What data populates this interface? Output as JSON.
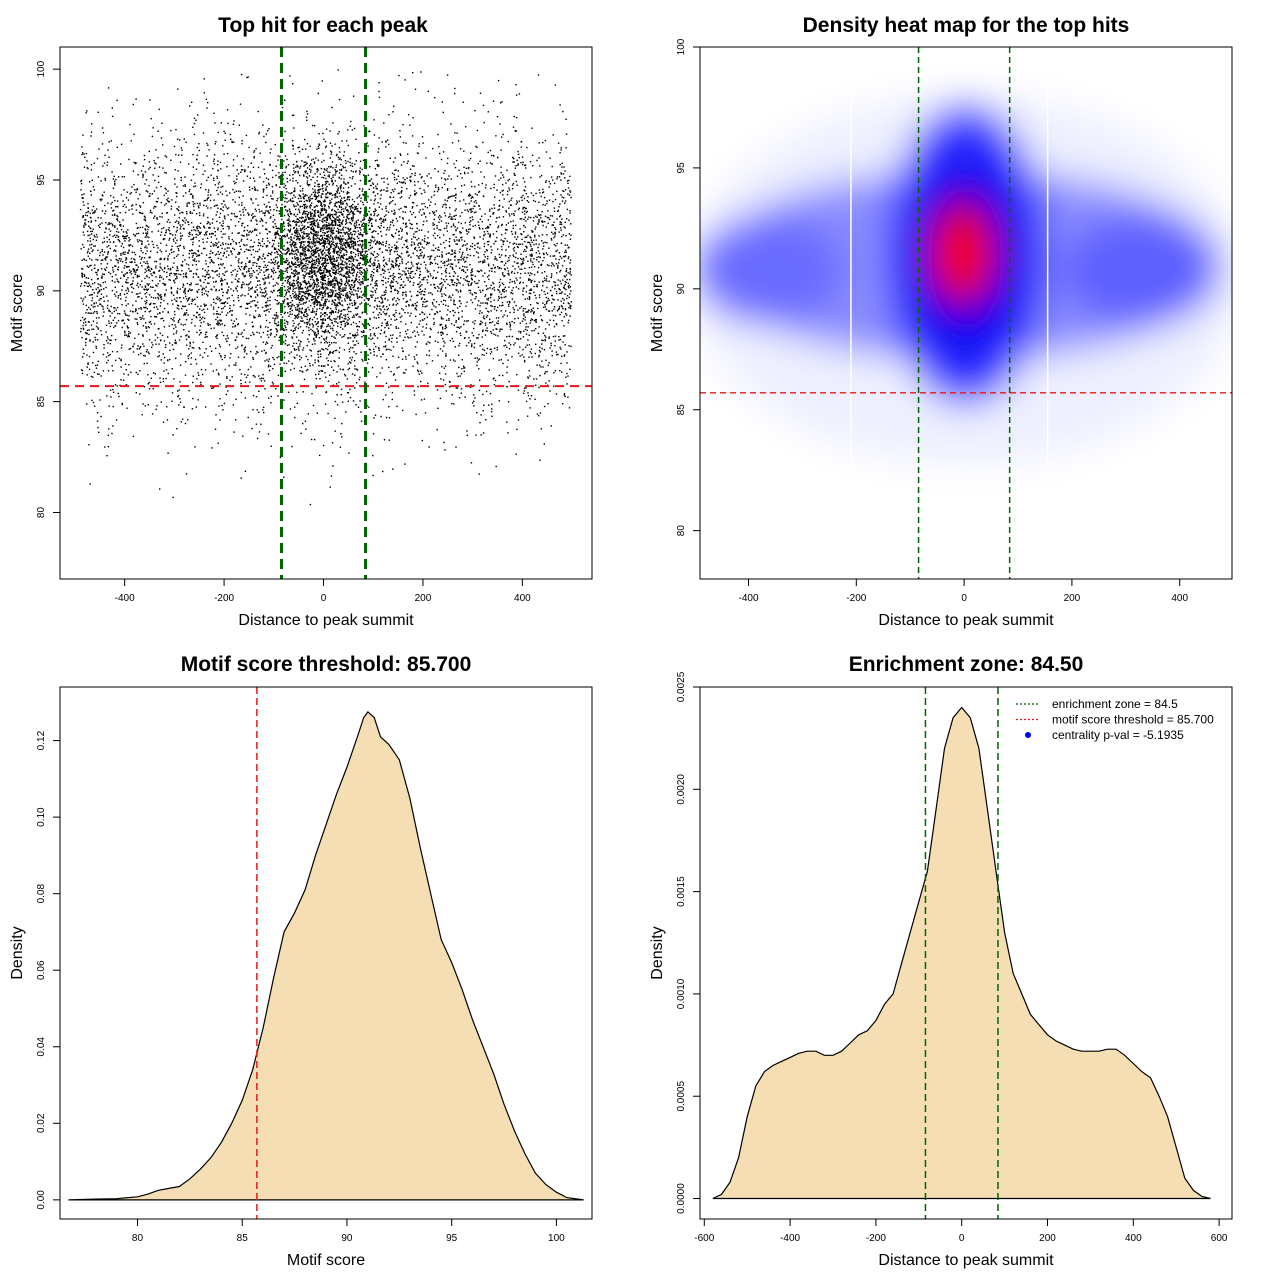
{
  "colors": {
    "threshold": "#e41a1c",
    "zone": "#006400",
    "density_fill": "#f5deb3",
    "points": "#000000",
    "heat_low": "#ffffff",
    "heat_mid": "#0000ff",
    "heat_high": "#ff0000",
    "centrality_marker": "#0000ff"
  },
  "chart_data": [
    {
      "id": "scatter",
      "type": "scatter",
      "title": "Top hit for each peak",
      "xlabel": "Distance to peak summit",
      "ylabel": "Motif score",
      "xlim": [
        -530,
        540
      ],
      "ylim": [
        77,
        101
      ],
      "xticks": [
        -400,
        -200,
        0,
        200,
        400
      ],
      "yticks": [
        80,
        85,
        90,
        95,
        100
      ],
      "threshold_y": 85.7,
      "zone_x": [
        -84.5,
        84.5
      ],
      "grid": false,
      "point_count_approx": 9000,
      "points_x_range": [
        -490,
        497
      ],
      "points_score_mean": 91,
      "points_score_sd": 3
    },
    {
      "id": "heatmap",
      "type": "heatmap",
      "title": "Density heat map for the top hits",
      "xlabel": "Distance to peak summit",
      "ylabel": "Motif score",
      "xlim": [
        -490,
        497
      ],
      "ylim": [
        78,
        100
      ],
      "xticks": [
        -400,
        -200,
        0,
        200,
        400
      ],
      "yticks": [
        80,
        85,
        90,
        95,
        100
      ],
      "threshold_y": 85.7,
      "zone_x": [
        -84.5,
        84.5
      ],
      "white_lines_x": [
        -210,
        155
      ],
      "density_peak": {
        "x": 0,
        "y": 91.5
      }
    },
    {
      "id": "score-density",
      "type": "area",
      "title": "Motif score threshold: 85.700",
      "xlabel": "Motif score",
      "ylabel": "Density",
      "xlim": [
        76.3,
        101.7
      ],
      "ylim": [
        -0.005,
        0.134
      ],
      "xticks": [
        80,
        85,
        90,
        95,
        100
      ],
      "yticks": [
        0.0,
        0.02,
        0.04,
        0.06,
        0.08,
        0.1,
        0.12
      ],
      "ytick_labels": [
        "0.00",
        "0.02",
        "0.04",
        "0.06",
        "0.08",
        "0.10",
        "0.12"
      ],
      "threshold_x": 85.7,
      "x": [
        76.7,
        78,
        79,
        80,
        80.5,
        81,
        81.5,
        82,
        82.5,
        83,
        83.5,
        84,
        84.5,
        85,
        85.5,
        86,
        86.5,
        87,
        87.5,
        88,
        88.5,
        89,
        89.5,
        90,
        90.5,
        90.8,
        91,
        91.3,
        91.6,
        92,
        92.5,
        93,
        93.5,
        94,
        94.5,
        95,
        95.5,
        96,
        96.5,
        97,
        97.5,
        98,
        98.5,
        99,
        99.5,
        100,
        100.5,
        101.3
      ],
      "y": [
        0.0,
        0.0002,
        0.0003,
        0.0008,
        0.0015,
        0.0025,
        0.003,
        0.0035,
        0.0055,
        0.008,
        0.011,
        0.015,
        0.02,
        0.026,
        0.034,
        0.045,
        0.058,
        0.07,
        0.075,
        0.081,
        0.09,
        0.098,
        0.106,
        0.113,
        0.121,
        0.126,
        0.1275,
        0.126,
        0.121,
        0.119,
        0.115,
        0.105,
        0.092,
        0.08,
        0.068,
        0.062,
        0.055,
        0.047,
        0.04,
        0.033,
        0.025,
        0.018,
        0.012,
        0.007,
        0.004,
        0.002,
        0.0006,
        0.0
      ]
    },
    {
      "id": "distance-density",
      "type": "area",
      "title": "Enrichment zone: 84.50",
      "xlabel": "Distance to peak summit",
      "ylabel": "Density",
      "xlim": [
        -610,
        630
      ],
      "ylim": [
        -0.0001,
        0.0025
      ],
      "xticks": [
        -600,
        -400,
        -200,
        0,
        200,
        400,
        600
      ],
      "yticks": [
        0.0,
        0.0005,
        0.001,
        0.0015,
        0.002,
        0.0025
      ],
      "ytick_labels": [
        "0.0000",
        "0.0005",
        "0.0010",
        "0.0015",
        "0.0020",
        "0.0025"
      ],
      "zone_x": [
        -84.5,
        84.5
      ],
      "x": [
        -580,
        -560,
        -540,
        -520,
        -500,
        -480,
        -460,
        -440,
        -420,
        -400,
        -380,
        -360,
        -340,
        -320,
        -300,
        -280,
        -260,
        -240,
        -220,
        -200,
        -180,
        -160,
        -140,
        -120,
        -100,
        -80,
        -60,
        -40,
        -20,
        0,
        20,
        40,
        60,
        80,
        100,
        120,
        140,
        160,
        180,
        200,
        220,
        240,
        260,
        280,
        300,
        320,
        340,
        360,
        380,
        400,
        420,
        440,
        460,
        480,
        500,
        520,
        540,
        560,
        580
      ],
      "y": [
        0.0,
        2e-05,
        8e-05,
        0.0002,
        0.0004,
        0.00055,
        0.00062,
        0.00065,
        0.00067,
        0.00069,
        0.00071,
        0.00072,
        0.00072,
        0.0007,
        0.0007,
        0.00072,
        0.00076,
        0.0008,
        0.00082,
        0.00087,
        0.00095,
        0.001,
        0.00115,
        0.0013,
        0.00145,
        0.0016,
        0.0019,
        0.0022,
        0.00235,
        0.0024,
        0.00235,
        0.0022,
        0.0019,
        0.0016,
        0.0013,
        0.0011,
        0.001,
        0.0009,
        0.00085,
        0.0008,
        0.00077,
        0.00075,
        0.00073,
        0.00072,
        0.00072,
        0.00072,
        0.00073,
        0.00073,
        0.0007,
        0.00066,
        0.00062,
        0.00059,
        0.0005,
        0.0004,
        0.00025,
        0.0001,
        4e-05,
        1e-05,
        0.0
      ],
      "legend": {
        "position": "top-right",
        "entries": [
          {
            "label": "enrichment zone = 84.5",
            "style": "dotted-line",
            "color": "#006400"
          },
          {
            "label": "motif score threshold = 85.700",
            "style": "dotted-line",
            "color": "#e41a1c"
          },
          {
            "label": "centrality p-val = -5.1935",
            "style": "point",
            "color": "#0000ff"
          }
        ]
      }
    }
  ]
}
